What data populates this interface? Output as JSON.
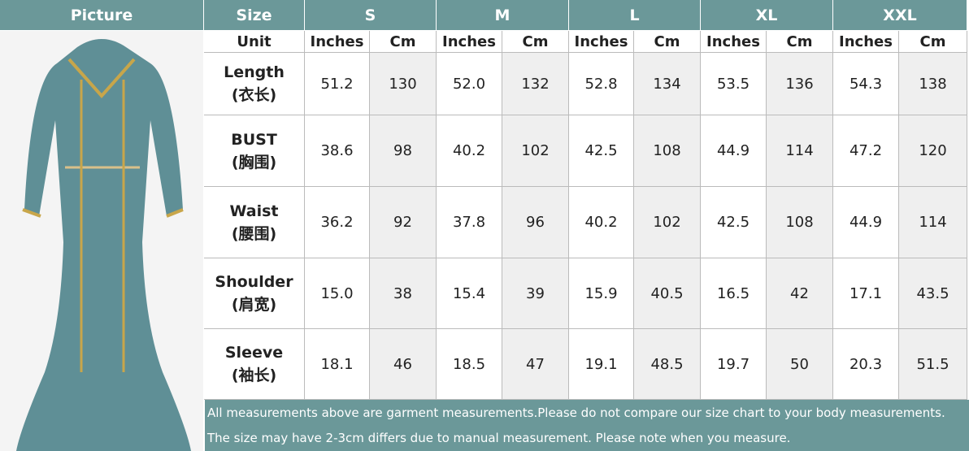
{
  "header": {
    "picture": "Picture",
    "size": "Size",
    "sizes": [
      "S",
      "M",
      "L",
      "XL",
      "XXL"
    ]
  },
  "units": {
    "label": "Unit",
    "values": [
      "Inches",
      "Cm",
      "Inches",
      "Cm",
      "Inches",
      "Cm",
      "Inches",
      "Cm",
      "Inches",
      "Cm"
    ]
  },
  "rows": [
    {
      "label": "Length",
      "label_cn": "(衣长)",
      "values": [
        "51.2",
        "130",
        "52.0",
        "132",
        "52.8",
        "134",
        "53.5",
        "136",
        "54.3",
        "138"
      ]
    },
    {
      "label": "BUST",
      "label_cn": "(胸围)",
      "values": [
        "38.6",
        "98",
        "40.2",
        "102",
        "42.5",
        "108",
        "44.9",
        "114",
        "47.2",
        "120"
      ]
    },
    {
      "label": "Waist",
      "label_cn": "(腰围)",
      "values": [
        "36.2",
        "92",
        "37.8",
        "96",
        "40.2",
        "102",
        "42.5",
        "108",
        "44.9",
        "114"
      ]
    },
    {
      "label": "Shoulder",
      "label_cn": "(肩宽)",
      "values": [
        "15.0",
        "38",
        "15.4",
        "39",
        "15.9",
        "40.5",
        "16.5",
        "42",
        "17.1",
        "43.5"
      ]
    },
    {
      "label": "Sleeve",
      "label_cn": "(袖长)",
      "values": [
        "18.1",
        "46",
        "18.5",
        "47",
        "19.1",
        "48.5",
        "19.7",
        "50",
        "20.3",
        "51.5"
      ]
    }
  ],
  "notes": [
    "All measurements above are garment measurements.Please do not compare our size chart to your body measurements.",
    "The size may have 2-3cm differs due to manual measurement. Please note when you measure."
  ]
}
